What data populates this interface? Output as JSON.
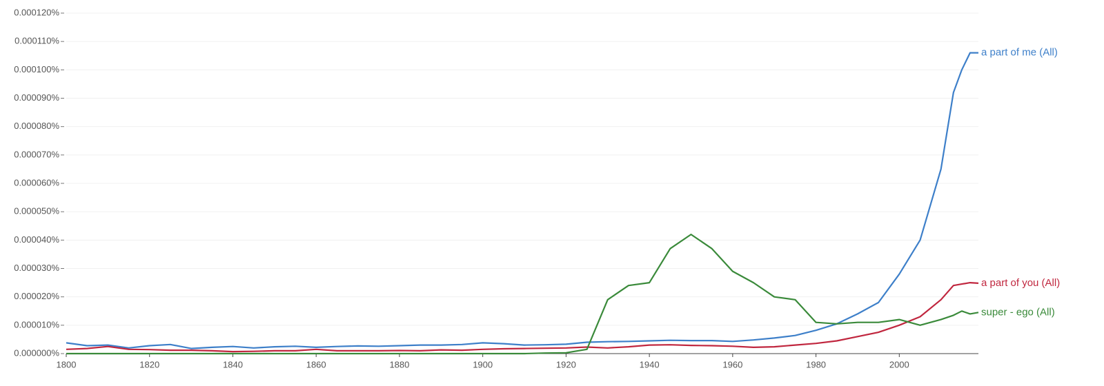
{
  "chart_data": {
    "type": "line",
    "x": [
      1800,
      1805,
      1810,
      1815,
      1820,
      1825,
      1830,
      1835,
      1840,
      1845,
      1850,
      1855,
      1860,
      1865,
      1870,
      1875,
      1880,
      1885,
      1890,
      1895,
      1900,
      1905,
      1910,
      1915,
      1920,
      1925,
      1930,
      1935,
      1940,
      1945,
      1950,
      1955,
      1960,
      1965,
      1970,
      1975,
      1980,
      1985,
      1990,
      1995,
      2000,
      2005,
      2010,
      2013,
      2015,
      2017,
      2019
    ],
    "series": [
      {
        "name": "a part of me (All)",
        "color": "#3d7fc9",
        "values": [
          3.8e-06,
          2.8e-06,
          3e-06,
          2e-06,
          2.8e-06,
          3.2e-06,
          1.8e-06,
          2.2e-06,
          2.5e-06,
          2e-06,
          2.4e-06,
          2.6e-06,
          2.2e-06,
          2.5e-06,
          2.7e-06,
          2.6e-06,
          2.8e-06,
          3e-06,
          3e-06,
          3.2e-06,
          3.8e-06,
          3.5e-06,
          3e-06,
          3.1e-06,
          3.3e-06,
          4e-06,
          4.2e-06,
          4.3e-06,
          4.5e-06,
          4.7e-06,
          4.6e-06,
          4.6e-06,
          4.3e-06,
          4.8e-06,
          5.5e-06,
          6.4e-06,
          8.2e-06,
          1.05e-05,
          1.4e-05,
          1.8e-05,
          2.8e-05,
          4e-05,
          6.5e-05,
          9.2e-05,
          0.0001,
          0.000106,
          0.000106
        ]
      },
      {
        "name": "a part of you (All)",
        "color": "#c0263e",
        "values": [
          1.5e-06,
          1.8e-06,
          2.5e-06,
          1.5e-06,
          1.4e-06,
          1.2e-06,
          1.2e-06,
          1e-06,
          7e-07,
          8e-07,
          1e-06,
          1e-06,
          1.5e-06,
          1e-06,
          1e-06,
          1e-06,
          1.1e-06,
          1e-06,
          1.3e-06,
          1.2e-06,
          1.5e-06,
          1.7e-06,
          1.8e-06,
          1.9e-06,
          2e-06,
          2.3e-06,
          2e-06,
          2.4e-06,
          3e-06,
          3.1e-06,
          2.9e-06,
          2.8e-06,
          2.6e-06,
          2.2e-06,
          2.4e-06,
          3e-06,
          3.6e-06,
          4.5e-06,
          6e-06,
          7.5e-06,
          1e-05,
          1.3e-05,
          1.9e-05,
          2.4e-05,
          2.45e-05,
          2.5e-05,
          2.48e-05
        ]
      },
      {
        "name": "super - ego (All)",
        "color": "#3a8a3a",
        "values": [
          0,
          0,
          0,
          0,
          0,
          0,
          0,
          0,
          0,
          0,
          0,
          0,
          0,
          0,
          0,
          0,
          0,
          0,
          0,
          0,
          0,
          0,
          0,
          2e-07,
          3e-07,
          1.5e-06,
          1.9e-05,
          2.4e-05,
          2.5e-05,
          3.7e-05,
          4.2e-05,
          3.7e-05,
          2.9e-05,
          2.5e-05,
          2e-05,
          1.9e-05,
          1.1e-05,
          1.05e-05,
          1.1e-05,
          1.1e-05,
          1.2e-05,
          1e-05,
          1.2e-05,
          1.35e-05,
          1.5e-05,
          1.4e-05,
          1.45e-05
        ]
      }
    ],
    "xlim": [
      1800,
      2019
    ],
    "xticks": [
      1800,
      1820,
      1840,
      1860,
      1880,
      1900,
      1920,
      1940,
      1960,
      1980,
      2000
    ],
    "ylim": [
      0,
      0.00012
    ],
    "yticks": [
      {
        "value": 0,
        "label": "0.000000%"
      },
      {
        "value": 1e-05,
        "label": "0.000010%"
      },
      {
        "value": 2e-05,
        "label": "0.000020%"
      },
      {
        "value": 3e-05,
        "label": "0.000030%"
      },
      {
        "value": 4e-05,
        "label": "0.000040%"
      },
      {
        "value": 5e-05,
        "label": "0.000050%"
      },
      {
        "value": 6e-05,
        "label": "0.000060%"
      },
      {
        "value": 7e-05,
        "label": "0.000070%"
      },
      {
        "value": 8e-05,
        "label": "0.000080%"
      },
      {
        "value": 9e-05,
        "label": "0.000090%"
      },
      {
        "value": 0.0001,
        "label": "0.000100%"
      },
      {
        "value": 0.00011,
        "label": "0.000110%"
      },
      {
        "value": 0.00012,
        "label": "0.000120%"
      }
    ],
    "grid": true
  }
}
